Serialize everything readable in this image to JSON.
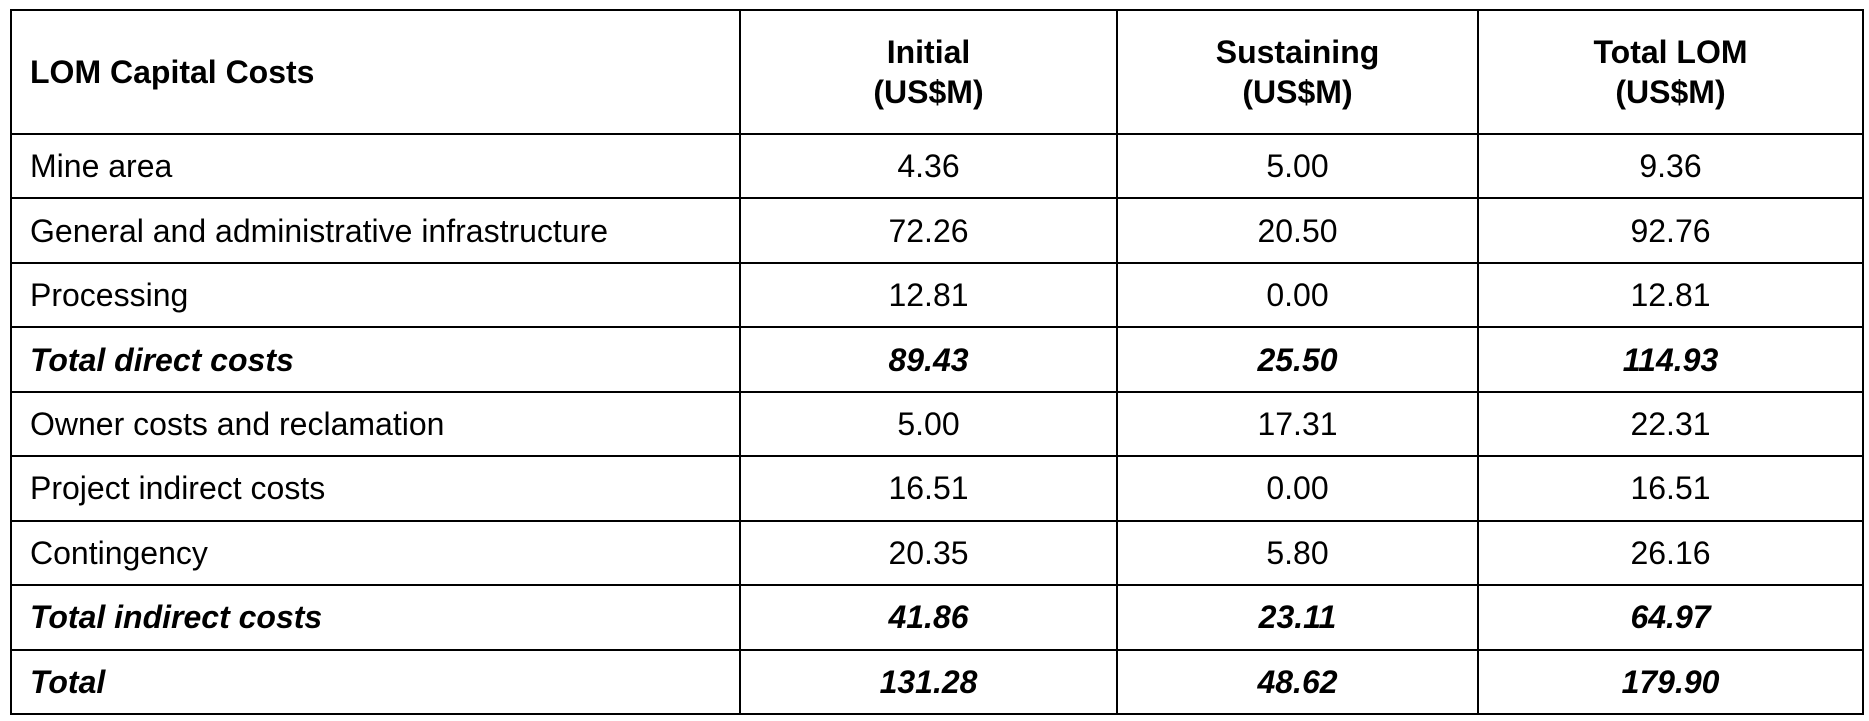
{
  "table": {
    "columns": [
      {
        "lines": [
          "LOM Capital Costs"
        ]
      },
      {
        "lines": [
          "Initial",
          "(US$M)"
        ]
      },
      {
        "lines": [
          "Sustaining",
          "(US$M)"
        ]
      },
      {
        "lines": [
          "Total LOM",
          "(US$M)"
        ]
      }
    ],
    "rows": [
      {
        "kind": "item",
        "label": "Mine area",
        "initial": "4.36",
        "sustaining": "5.00",
        "total": "9.36"
      },
      {
        "kind": "item",
        "label": "General and administrative infrastructure",
        "initial": "72.26",
        "sustaining": "20.50",
        "total": "92.76"
      },
      {
        "kind": "item",
        "label": "Processing",
        "initial": "12.81",
        "sustaining": "0.00",
        "total": "12.81"
      },
      {
        "kind": "subtotal",
        "label": "Total direct costs",
        "initial": "89.43",
        "sustaining": "25.50",
        "total": "114.93"
      },
      {
        "kind": "item",
        "label": "Owner costs and reclamation",
        "initial": "5.00",
        "sustaining": "17.31",
        "total": "22.31"
      },
      {
        "kind": "item",
        "label": "Project indirect costs",
        "initial": "16.51",
        "sustaining": "0.00",
        "total": "16.51"
      },
      {
        "kind": "item",
        "label": "Contingency",
        "initial": "20.35",
        "sustaining": "5.80",
        "total": "26.16"
      },
      {
        "kind": "subtotal",
        "label": "Total indirect costs",
        "initial": "41.86",
        "sustaining": "23.11",
        "total": "64.97"
      },
      {
        "kind": "total",
        "label": "Total",
        "initial": "131.28",
        "sustaining": "48.62",
        "total": "179.90"
      }
    ]
  }
}
